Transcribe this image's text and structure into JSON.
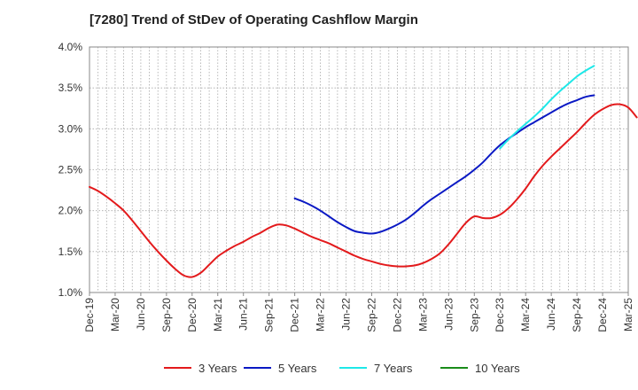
{
  "chart_data": {
    "type": "line",
    "title": "[7280]  Trend of StDev of Operating Cashflow Margin",
    "y_ticks": [
      "4.0%",
      "3.5%",
      "3.0%",
      "2.5%",
      "2.0%",
      "1.5%",
      "1.0%"
    ],
    "y_tick_values": [
      4.0,
      3.5,
      3.0,
      2.5,
      2.0,
      1.5,
      1.0
    ],
    "ylim": [
      1.0,
      4.0
    ],
    "x_ticks": [
      "Dec-19",
      "Mar-20",
      "Jun-20",
      "Sep-20",
      "Dec-20",
      "Mar-21",
      "Jun-21",
      "Sep-21",
      "Dec-21",
      "Mar-22",
      "Jun-22",
      "Sep-22",
      "Dec-22",
      "Mar-23",
      "Jun-23",
      "Sep-23",
      "Dec-23",
      "Mar-24",
      "Jun-24",
      "Sep-24",
      "Dec-24",
      "Mar-25"
    ],
    "grid": true,
    "legend_position": "bottom",
    "x_start": "2019-12",
    "series": [
      {
        "name": "3 Years",
        "color": "#e31a1c",
        "start": "2019-12",
        "values": [
          2.29,
          2.24,
          2.17,
          2.09,
          2.0,
          1.88,
          1.75,
          1.62,
          1.5,
          1.39,
          1.29,
          1.21,
          1.19,
          1.24,
          1.34,
          1.44,
          1.51,
          1.57,
          1.62,
          1.68,
          1.73,
          1.79,
          1.83,
          1.82,
          1.78,
          1.73,
          1.68,
          1.64,
          1.6,
          1.55,
          1.5,
          1.45,
          1.41,
          1.38,
          1.35,
          1.33,
          1.32,
          1.32,
          1.33,
          1.36,
          1.41,
          1.48,
          1.59,
          1.72,
          1.85,
          1.93,
          1.91,
          1.91,
          1.95,
          2.03,
          2.14,
          2.27,
          2.42,
          2.55,
          2.66,
          2.76,
          2.86,
          2.96,
          3.07,
          3.17,
          3.24,
          3.29,
          3.3,
          3.26,
          3.14
        ]
      },
      {
        "name": "5 Years",
        "color": "#0a19c4",
        "start": "2021-12",
        "values": [
          2.15,
          2.11,
          2.06,
          2.0,
          1.93,
          1.86,
          1.8,
          1.75,
          1.73,
          1.72,
          1.74,
          1.78,
          1.83,
          1.89,
          1.97,
          2.06,
          2.14,
          2.21,
          2.28,
          2.35,
          2.42,
          2.5,
          2.59,
          2.7,
          2.8,
          2.88,
          2.95,
          3.02,
          3.08,
          3.14,
          3.2,
          3.26,
          3.31,
          3.35,
          3.39,
          3.41
        ]
      },
      {
        "name": "7 Years",
        "color": "#1ee8e8",
        "start": "2023-12",
        "values": [
          2.76,
          2.87,
          2.97,
          3.06,
          3.15,
          3.25,
          3.36,
          3.46,
          3.55,
          3.64,
          3.71,
          3.77
        ]
      },
      {
        "name": "10 Years",
        "color": "#1a8c1a",
        "start": "2024-12",
        "values": []
      }
    ]
  }
}
